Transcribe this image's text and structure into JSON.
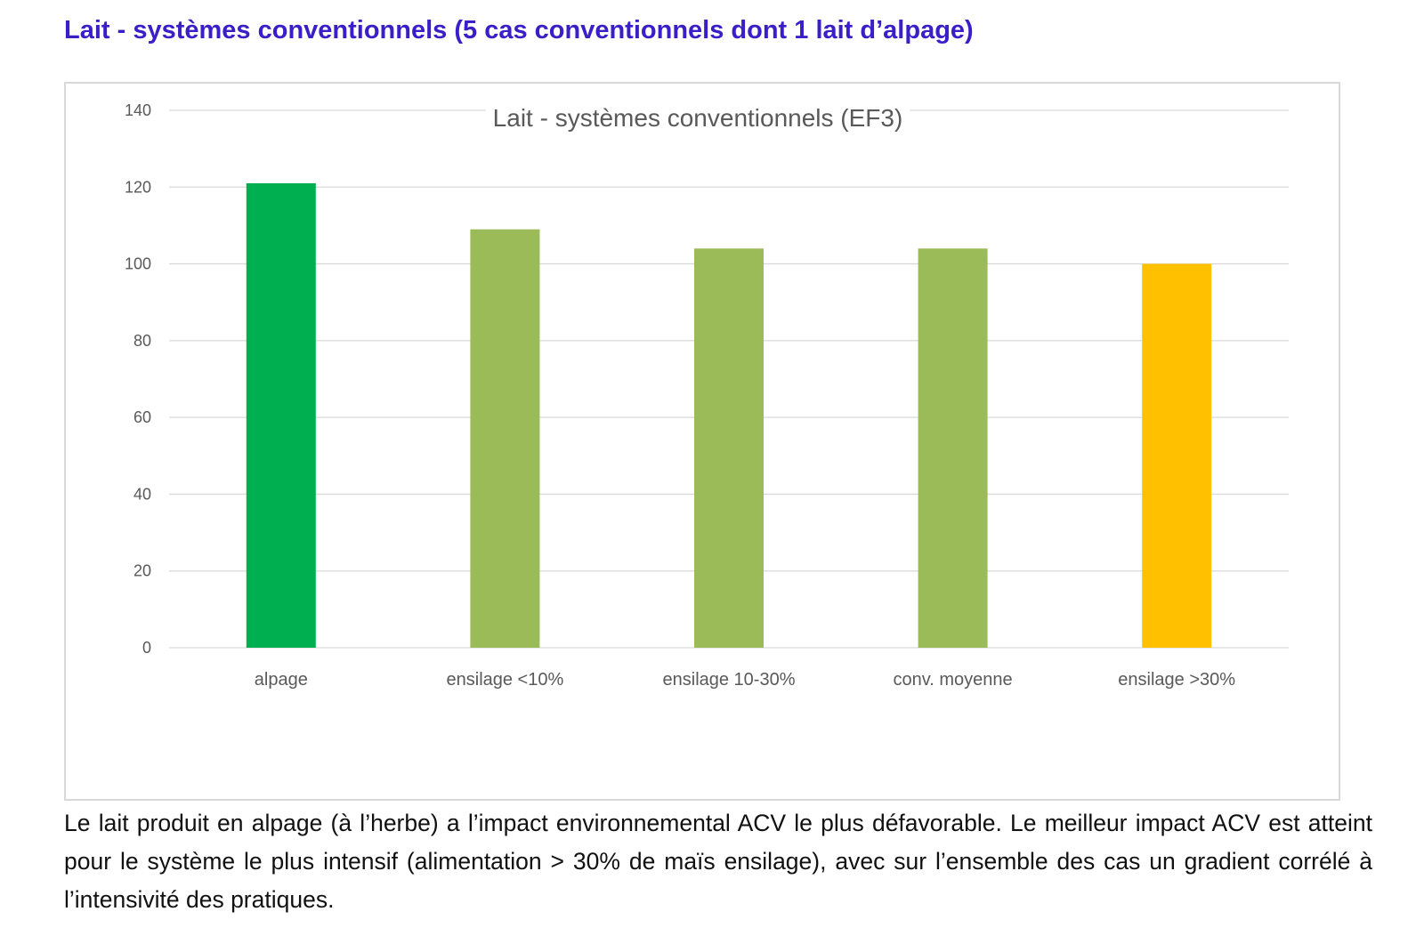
{
  "heading": "Lait - systèmes conventionnels (5 cas conventionnels dont 1 lait d’alpage)",
  "caption": "Le lait produit en alpage (à l’herbe) a l’impact environnemental ACV le plus défavorable. Le meilleur impact ACV est atteint pour le système le plus intensif (alimentation > 30% de maïs ensilage), avec sur l’ensemble des cas un gradient corrélé à l’intensivité des pratiques.",
  "colors": {
    "heading": "#3a1fc8",
    "grid": "#d9d9d9",
    "tick_text": "#595959"
  },
  "chart_data": {
    "type": "bar",
    "title": "Lait - systèmes conventionnels (EF3)",
    "xlabel": "",
    "ylabel": "",
    "categories": [
      "alpage",
      "ensilage <10%",
      "ensilage 10-30%",
      "conv. moyenne",
      "ensilage >30%"
    ],
    "values": [
      121,
      109,
      104,
      104,
      100
    ],
    "bar_colors": [
      "#00b050",
      "#9bbb59",
      "#9bbb59",
      "#9bbb59",
      "#ffc000"
    ],
    "ylim": [
      0,
      140
    ],
    "yticks": [
      0,
      20,
      40,
      60,
      80,
      100,
      120,
      140
    ],
    "grid": true,
    "legend": "none"
  }
}
